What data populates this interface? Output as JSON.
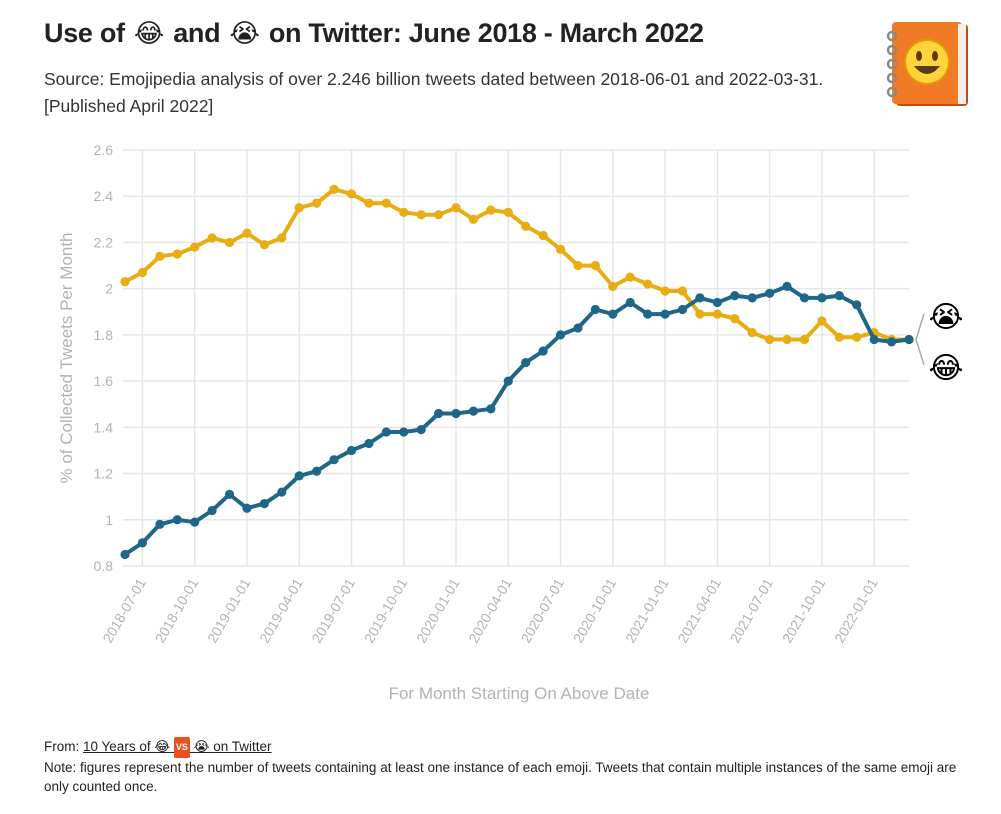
{
  "header": {
    "title_prefix": "Use of",
    "title_emoji1": "😂",
    "title_and": "and",
    "title_emoji2": "😭",
    "title_suffix": "on Twitter: June 2018 - March 2022",
    "subtitle": "Source: Emojipedia analysis of over 2.246 billion tweets dated between 2018-06-01 and 2022-03-31. [Published April 2022]",
    "logo_icon": "emojipedia-book-logo"
  },
  "footer": {
    "from_label": "From:",
    "link_text_prefix": "10 Years of",
    "link_emoji1": "😂",
    "link_vs": "VS",
    "link_emoji2": "😭",
    "link_text_suffix": "on Twitter",
    "note": "Note: figures represent the number of tweets containing at least one instance of each emoji. Tweets that contain multiple instances of the same emoji are only counted once."
  },
  "colors": {
    "joy": "#e8ad13",
    "sob": "#1f6689",
    "grid": "#e6e6e6",
    "axis_text": "#b3b3b3"
  },
  "chart_data": {
    "type": "line",
    "title": "Use of 😂 and 😭 on Twitter: June 2018 - March 2022",
    "xlabel": "For Month Starting On Above Date",
    "ylabel": "% of Collected Tweets Per Month",
    "ylim": [
      0.8,
      2.6
    ],
    "yticks": [
      "0.8",
      "1",
      "1.2",
      "1.4",
      "1.6",
      "1.8",
      "2",
      "2.2",
      "2.4",
      "2.6"
    ],
    "xtick_labels": [
      "2018-07-01",
      "2018-10-01",
      "2019-01-01",
      "2019-04-01",
      "2019-07-01",
      "2019-10-01",
      "2020-01-01",
      "2020-04-01",
      "2020-07-01",
      "2020-10-01",
      "2021-01-01",
      "2021-04-01",
      "2021-07-01",
      "2021-10-01",
      "2022-01-01"
    ],
    "x_start": "2018-06",
    "x_end": "2022-03",
    "grid": true,
    "series": [
      {
        "name": "😂",
        "label_emoji": "😂",
        "values": [
          2.03,
          2.07,
          2.14,
          2.15,
          2.18,
          2.22,
          2.2,
          2.24,
          2.19,
          2.22,
          2.35,
          2.37,
          2.43,
          2.41,
          2.37,
          2.37,
          2.33,
          2.32,
          2.32,
          2.35,
          2.3,
          2.34,
          2.33,
          2.27,
          2.23,
          2.17,
          2.1,
          2.1,
          2.01,
          2.05,
          2.02,
          1.99,
          1.99,
          1.89,
          1.89,
          1.87,
          1.81,
          1.78,
          1.78,
          1.78,
          1.86,
          1.79,
          1.79,
          1.81,
          1.78,
          1.78
        ]
      },
      {
        "name": "😭",
        "label_emoji": "😭",
        "values": [
          0.85,
          0.9,
          0.98,
          1.0,
          0.99,
          1.04,
          1.11,
          1.05,
          1.07,
          1.12,
          1.19,
          1.21,
          1.26,
          1.3,
          1.33,
          1.38,
          1.38,
          1.39,
          1.46,
          1.46,
          1.47,
          1.48,
          1.6,
          1.68,
          1.73,
          1.8,
          1.83,
          1.91,
          1.89,
          1.94,
          1.89,
          1.89,
          1.91,
          1.96,
          1.94,
          1.97,
          1.96,
          1.98,
          2.01,
          1.96,
          1.96,
          1.97,
          1.93,
          1.78,
          1.77,
          1.78
        ]
      }
    ]
  }
}
